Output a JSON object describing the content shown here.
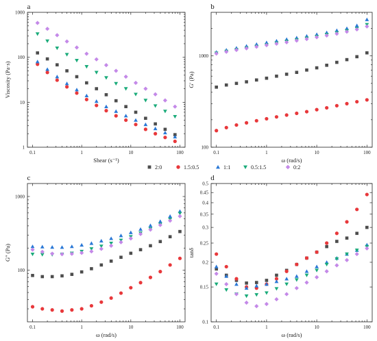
{
  "series_styles": [
    {
      "name": "2:0",
      "marker": "square",
      "color": "#4d4d4d"
    },
    {
      "name": "1.5:0.5",
      "marker": "circle",
      "color": "#e8383b"
    },
    {
      "name": "1:1",
      "marker": "triangle-up",
      "color": "#2a78d6"
    },
    {
      "name": "0.5:1.5",
      "marker": "triangle-down",
      "color": "#1aab7a"
    },
    {
      "name": "0:2",
      "marker": "diamond",
      "color": "#c489e8"
    }
  ],
  "legend_placement": "center, between top and bottom rows",
  "chart_data": [
    {
      "panel": "a",
      "type": "scatter",
      "xlabel": "Shear (s⁻¹)",
      "ylabel": "Viscosity (Pa·s)",
      "xscale": "log",
      "yscale": "log",
      "xlim": [
        0.1,
        100
      ],
      "ylim": [
        1,
        1000
      ],
      "xticks": [
        "0.1",
        "1",
        "10",
        "100"
      ],
      "yticks": [
        "1",
        "10",
        "100",
        "1000"
      ],
      "x": [
        0.126,
        0.2,
        0.316,
        0.5,
        0.794,
        1.26,
        2.0,
        3.16,
        5.0,
        7.94,
        12.6,
        20,
        31.6,
        50,
        79.4
      ],
      "series": [
        {
          "name": "2:0",
          "values": [
            125,
            92,
            68,
            50,
            37,
            27,
            20,
            14.7,
            10.8,
            8.0,
            6.0,
            4.4,
            3.3,
            2.5,
            1.9
          ]
        },
        {
          "name": "1.5:0.5",
          "values": [
            70,
            46,
            31,
            22,
            16,
            11.5,
            8.5,
            6.5,
            5.0,
            4.0,
            3.2,
            2.5,
            2.0,
            1.65,
            1.35
          ]
        },
        {
          "name": "1:1",
          "values": [
            80,
            54,
            37,
            26,
            19,
            14,
            10.5,
            8.0,
            6.3,
            5.0,
            4.0,
            3.2,
            2.6,
            2.1,
            1.7
          ]
        },
        {
          "name": "0.5:1.5",
          "values": [
            330,
            230,
            160,
            115,
            85,
            62,
            46,
            35,
            26,
            20,
            15,
            11,
            8.3,
            6.3,
            4.8
          ]
        },
        {
          "name": "0:2",
          "values": [
            580,
            430,
            310,
            225,
            165,
            120,
            90,
            67,
            50,
            37,
            27,
            20,
            15,
            11,
            8
          ]
        }
      ]
    },
    {
      "panel": "b",
      "type": "scatter",
      "xlabel": "ω (rad/s)",
      "ylabel": "G′ (Pa)",
      "xscale": "log",
      "yscale": "log",
      "xlim": [
        0.1,
        100
      ],
      "ylim": [
        100,
        3000
      ],
      "xticks": [
        "0.1",
        "1",
        "10",
        "100"
      ],
      "yticks": [
        "100",
        "1000"
      ],
      "x": [
        0.1,
        0.158,
        0.251,
        0.398,
        0.631,
        1.0,
        1.58,
        2.51,
        3.98,
        6.31,
        10,
        15.8,
        25.1,
        39.8,
        63.1,
        100
      ],
      "series": [
        {
          "name": "2:0",
          "values": [
            455,
            480,
            500,
            520,
            545,
            570,
            600,
            630,
            660,
            700,
            740,
            790,
            850,
            910,
            980,
            1080
          ]
        },
        {
          "name": "1.5:0.5",
          "values": [
            152,
            164,
            175,
            185,
            195,
            205,
            215,
            225,
            235,
            245,
            258,
            270,
            285,
            300,
            315,
            330
          ]
        },
        {
          "name": "1:1",
          "values": [
            1100,
            1160,
            1220,
            1280,
            1340,
            1400,
            1460,
            1520,
            1580,
            1650,
            1720,
            1800,
            1900,
            2000,
            2150,
            2500
          ]
        },
        {
          "name": "0.5:1.5",
          "values": [
            1070,
            1120,
            1170,
            1220,
            1270,
            1320,
            1380,
            1440,
            1500,
            1560,
            1630,
            1710,
            1790,
            1880,
            1990,
            2200
          ]
        },
        {
          "name": "0:2",
          "values": [
            1060,
            1110,
            1160,
            1210,
            1260,
            1310,
            1360,
            1410,
            1470,
            1530,
            1600,
            1670,
            1750,
            1840,
            1950,
            2100
          ]
        }
      ]
    },
    {
      "panel": "c",
      "type": "scatter",
      "xlabel": "ω (rad/s)",
      "ylabel": "G″ (Pa)",
      "xscale": "log",
      "yscale": "log",
      "xlim": [
        0.1,
        100
      ],
      "ylim": [
        20,
        1500
      ],
      "xticks": [
        "0.1",
        "1",
        "10",
        "100"
      ],
      "yticks": [
        "100",
        "1000"
      ],
      "x": [
        0.1,
        0.158,
        0.251,
        0.398,
        0.631,
        1.0,
        1.58,
        2.51,
        3.98,
        6.31,
        10,
        15.8,
        25.1,
        39.8,
        63.1,
        100
      ],
      "series": [
        {
          "name": "2:0",
          "values": [
            85,
            82,
            82,
            84,
            88,
            95,
            105,
            118,
            133,
            150,
            170,
            190,
            215,
            245,
            285,
            335
          ]
        },
        {
          "name": "1.5:0.5",
          "values": [
            32,
            30,
            29,
            28,
            29,
            30,
            33,
            37,
            42,
            49,
            58,
            68,
            80,
            96,
            118,
            145
          ]
        },
        {
          "name": "1:1",
          "values": [
            210,
            208,
            206,
            205,
            210,
            220,
            232,
            250,
            270,
            295,
            325,
            360,
            405,
            460,
            540,
            630
          ]
        },
        {
          "name": "0.5:1.5",
          "values": [
            165,
            163,
            163,
            165,
            170,
            180,
            195,
            212,
            232,
            255,
            285,
            320,
            365,
            420,
            490,
            590
          ]
        },
        {
          "name": "0:2",
          "values": [
            190,
            178,
            168,
            165,
            167,
            172,
            180,
            195,
            215,
            240,
            270,
            310,
            355,
            410,
            470,
            540
          ]
        }
      ]
    },
    {
      "panel": "d",
      "type": "scatter",
      "xlabel": "ω (rad/s)",
      "ylabel": "tanδ",
      "xscale": "log",
      "yscale": "log",
      "xlim": [
        0.1,
        100
      ],
      "ylim": [
        0.1,
        0.5
      ],
      "xticks": [
        "0.1",
        "1",
        "10",
        "100"
      ],
      "yticks": [
        "0.1",
        "0.15",
        "0.2",
        "0.25",
        "0.3",
        "0.35",
        "0.4",
        "0.45",
        "0.5"
      ],
      "x": [
        0.1,
        0.158,
        0.251,
        0.398,
        0.631,
        1.0,
        1.58,
        2.51,
        3.98,
        6.31,
        10,
        15.8,
        25.1,
        39.8,
        63.1,
        100
      ],
      "series": [
        {
          "name": "2:0",
          "values": [
            0.185,
            0.172,
            0.162,
            0.157,
            0.158,
            0.162,
            0.172,
            0.182,
            0.195,
            0.21,
            0.225,
            0.24,
            0.255,
            0.265,
            0.28,
            0.3
          ]
        },
        {
          "name": "1.5:0.5",
          "values": [
            0.22,
            0.19,
            0.165,
            0.15,
            0.148,
            0.155,
            0.165,
            0.18,
            0.195,
            0.21,
            0.225,
            0.25,
            0.28,
            0.32,
            0.37,
            0.44
          ]
        },
        {
          "name": "1:1",
          "values": [
            0.19,
            0.17,
            0.155,
            0.148,
            0.152,
            0.155,
            0.16,
            0.165,
            0.17,
            0.18,
            0.19,
            0.2,
            0.21,
            0.22,
            0.23,
            0.245
          ]
        },
        {
          "name": "0.5:1.5",
          "values": [
            0.155,
            0.145,
            0.138,
            0.135,
            0.137,
            0.14,
            0.147,
            0.155,
            0.163,
            0.172,
            0.182,
            0.195,
            0.208,
            0.22,
            0.23,
            0.24
          ]
        },
        {
          "name": "0:2",
          "values": [
            0.175,
            0.155,
            0.138,
            0.125,
            0.12,
            0.123,
            0.13,
            0.138,
            0.148,
            0.158,
            0.168,
            0.18,
            0.193,
            0.205,
            0.22,
            0.235
          ]
        }
      ]
    }
  ]
}
